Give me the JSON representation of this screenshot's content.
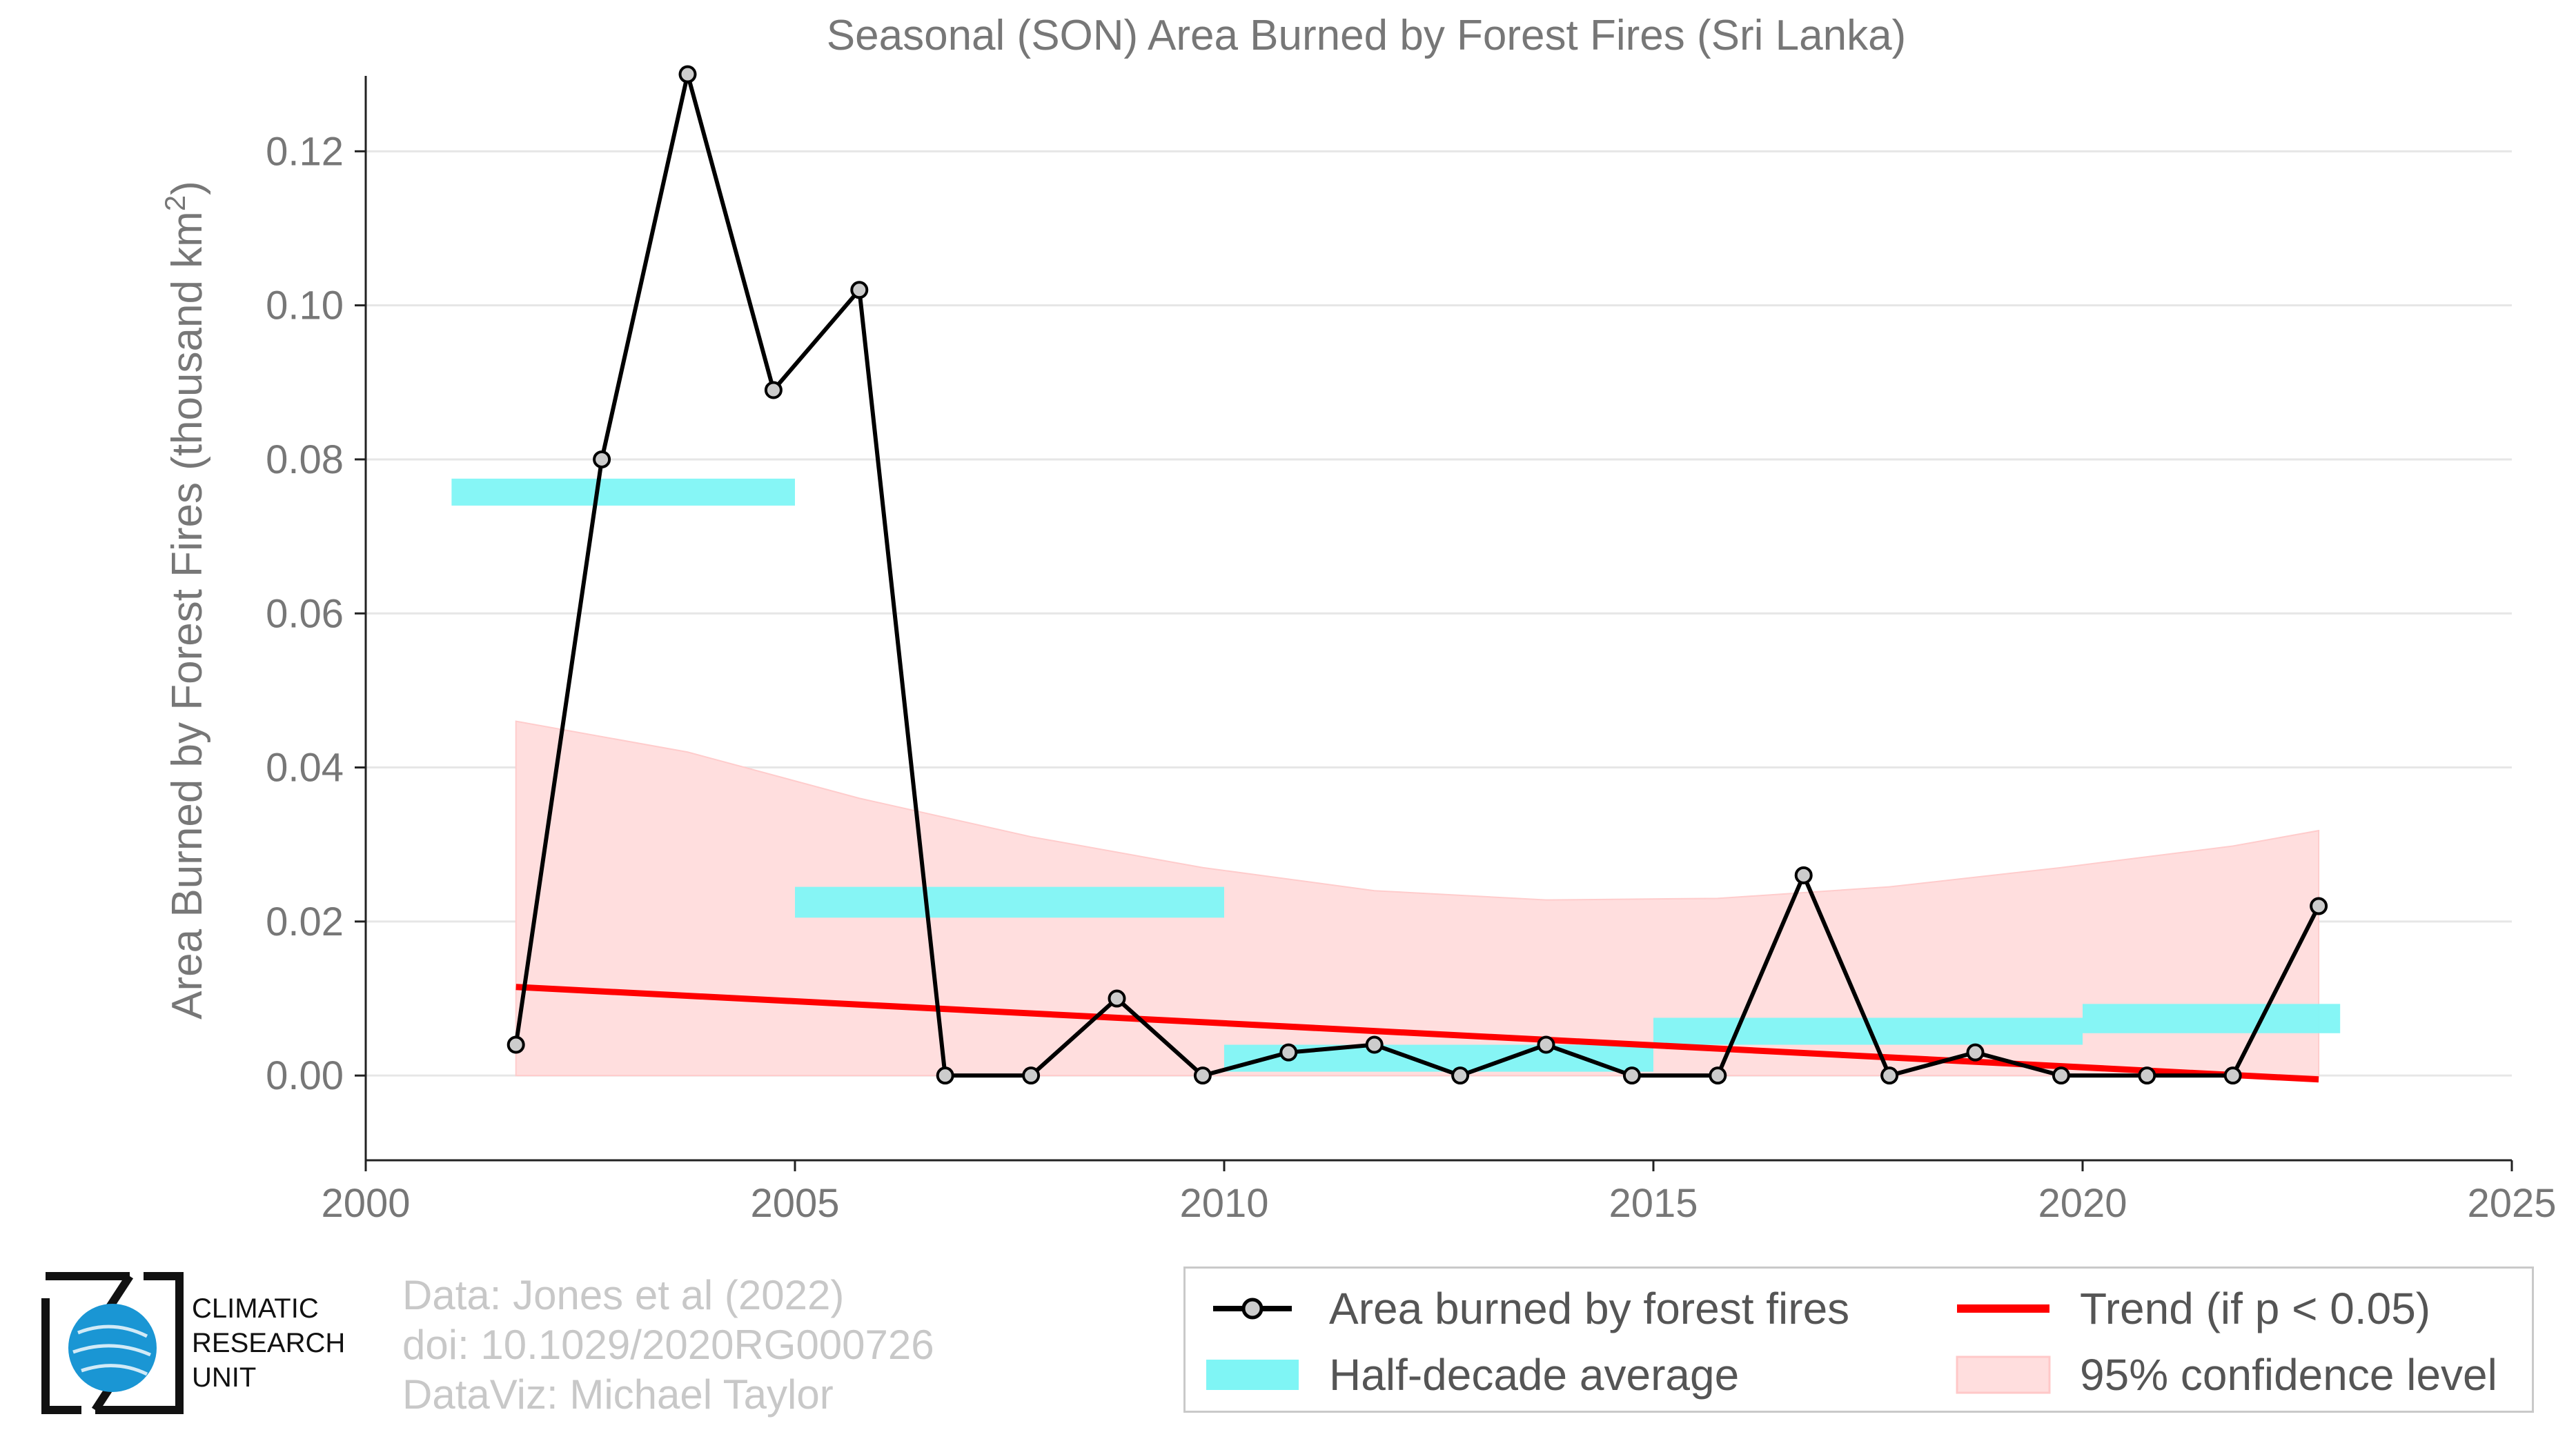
{
  "chart_data": {
    "type": "line",
    "title": "Seasonal (SON) Area Burned by Forest Fires (Sri Lanka)",
    "xlabel": "",
    "ylabel": "Area Burned by Forest Fires (thousand km²)",
    "xlim": [
      2000,
      2025
    ],
    "ylim": [
      -0.011,
      0.128
    ],
    "xticks": [
      2000,
      2005,
      2010,
      2015,
      2020,
      2025
    ],
    "yticks": [
      0.0,
      0.02,
      0.04,
      0.06,
      0.08,
      0.1,
      0.12
    ],
    "ytick_labels": [
      "0.00",
      "0.02",
      "0.04",
      "0.06",
      "0.08",
      "0.10",
      "0.12"
    ],
    "grid": "horizontal",
    "legend_placement": "bottom-right",
    "series": [
      {
        "name": "Area burned by forest fires",
        "x": [
          2001.75,
          2002.75,
          2003.75,
          2004.75,
          2005.75,
          2006.75,
          2007.75,
          2008.75,
          2009.75,
          2010.75,
          2011.75,
          2012.75,
          2013.75,
          2014.75,
          2015.75,
          2016.75,
          2017.75,
          2018.75,
          2019.75,
          2020.75,
          2021.75,
          2022.75
        ],
        "values": [
          0.004,
          0.08,
          0.13,
          0.089,
          0.102,
          0.0,
          0.0,
          0.01,
          0.0,
          0.003,
          0.004,
          0.0,
          0.004,
          0.0,
          0.0,
          0.026,
          0.0,
          0.003,
          0.0,
          0.0,
          0.0,
          0.022
        ],
        "color": "#000000"
      },
      {
        "name": "Half-decade average",
        "bars": [
          {
            "x0": 2001.0,
            "x1": 2005.0,
            "y0": 0.074,
            "y1": 0.0775
          },
          {
            "x0": 2005.0,
            "x1": 2010.0,
            "y0": 0.0205,
            "y1": 0.0245
          },
          {
            "x0": 2010.0,
            "x1": 2015.0,
            "y0": 0.0005,
            "y1": 0.004
          },
          {
            "x0": 2015.0,
            "x1": 2020.0,
            "y0": 0.004,
            "y1": 0.0075
          },
          {
            "x0": 2020.0,
            "x1": 2023.0,
            "y0": 0.0055,
            "y1": 0.0093
          }
        ],
        "color": "#7ff5f5"
      },
      {
        "name": "Trend (if p < 0.05)",
        "x": [
          2001.75,
          2022.75
        ],
        "values": [
          0.0115,
          -0.0005
        ],
        "color": "#ff0000"
      },
      {
        "name": "95% confidence level",
        "x": [
          2001.75,
          2003.75,
          2005.75,
          2007.75,
          2009.75,
          2011.75,
          2013.75,
          2015.75,
          2017.75,
          2019.75,
          2021.75,
          2022.75
        ],
        "lower": [
          0.0,
          0.0,
          0.0,
          0.0,
          0.0,
          0.0,
          0.0,
          0.0,
          0.0,
          0.0,
          0.0,
          0.0
        ],
        "upper": [
          0.046,
          0.042,
          0.036,
          0.031,
          0.027,
          0.024,
          0.0228,
          0.023,
          0.0245,
          0.027,
          0.0298,
          0.0318
        ],
        "color": "#ffdede"
      }
    ]
  },
  "credits": {
    "line1": "Data: Jones et al (2022)",
    "line2": "doi: 10.1029/2020RG000726",
    "line3": "DataViz: Michael Taylor"
  },
  "logo": {
    "line1": "CLIMATIC",
    "line2": "RESEARCH",
    "line3": "UNIT",
    "globe_color": "#1a96d4"
  },
  "legend": {
    "items": [
      {
        "label": "Area burned by forest fires"
      },
      {
        "label": "Trend (if p < 0.05)"
      },
      {
        "label": "Half-decade average"
      },
      {
        "label": "95% confidence level"
      }
    ]
  },
  "colors": {
    "axis_text": "#777777",
    "grid": "#e6e6e6",
    "credits": "#c8c8c8"
  }
}
